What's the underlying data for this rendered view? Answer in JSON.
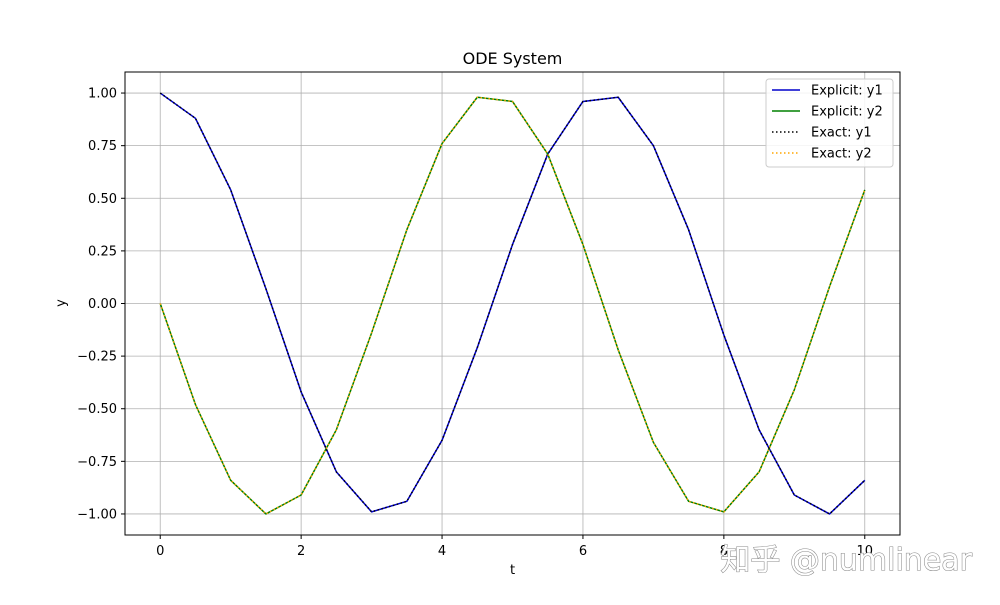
{
  "chart_data": {
    "type": "line",
    "title": "ODE System",
    "xlabel": "t",
    "ylabel": "y",
    "xlim": [
      -0.5,
      10.5
    ],
    "ylim": [
      -1.1,
      1.1
    ],
    "xticks": [
      0,
      2,
      4,
      6,
      8,
      10
    ],
    "xtick_labels": [
      "0",
      "2",
      "4",
      "6",
      "8",
      "10"
    ],
    "yticks": [
      1.0,
      0.75,
      0.5,
      0.25,
      0.0,
      -0.25,
      -0.5,
      -0.75,
      -1.0
    ],
    "ytick_labels": [
      "1.00",
      "0.75",
      "0.50",
      "0.25",
      "0.00",
      "−0.25",
      "−0.50",
      "−0.75",
      "−1.00"
    ],
    "grid": true,
    "legend_position": "top-right",
    "x": [
      0,
      0.5,
      1,
      1.5,
      2,
      2.5,
      3,
      3.5,
      4,
      4.5,
      5,
      5.5,
      6,
      6.5,
      7,
      7.5,
      8,
      8.5,
      9,
      9.5,
      10
    ],
    "series": [
      {
        "name": "Explicit: y1",
        "color": "#0000cc",
        "style": "solid",
        "values": [
          1.0,
          0.88,
          0.54,
          0.07,
          -0.42,
          -0.8,
          -0.99,
          -0.94,
          -0.65,
          -0.21,
          0.28,
          0.71,
          0.96,
          0.98,
          0.75,
          0.35,
          -0.15,
          -0.6,
          -0.91,
          -1.0,
          -0.84
        ]
      },
      {
        "name": "Explicit: y2",
        "color": "#008000",
        "style": "solid",
        "values": [
          0.0,
          -0.48,
          -0.84,
          -1.0,
          -0.91,
          -0.6,
          -0.14,
          0.35,
          0.76,
          0.98,
          0.96,
          0.71,
          0.28,
          -0.22,
          -0.66,
          -0.94,
          -0.99,
          -0.8,
          -0.41,
          0.08,
          0.54
        ]
      },
      {
        "name": "Exact: y1",
        "color": "#000000",
        "style": "dotted",
        "values": [
          1.0,
          0.88,
          0.54,
          0.07,
          -0.42,
          -0.8,
          -0.99,
          -0.94,
          -0.65,
          -0.21,
          0.28,
          0.71,
          0.96,
          0.98,
          0.75,
          0.35,
          -0.15,
          -0.6,
          -0.91,
          -1.0,
          -0.84
        ]
      },
      {
        "name": "Exact: y2",
        "color": "#ffa500",
        "style": "dotted",
        "values": [
          0.0,
          -0.48,
          -0.84,
          -1.0,
          -0.91,
          -0.6,
          -0.14,
          0.35,
          0.76,
          0.98,
          0.96,
          0.71,
          0.28,
          -0.22,
          -0.66,
          -0.94,
          -0.99,
          -0.8,
          -0.41,
          0.08,
          0.54
        ]
      }
    ]
  },
  "watermark": "知乎 @numlinear"
}
